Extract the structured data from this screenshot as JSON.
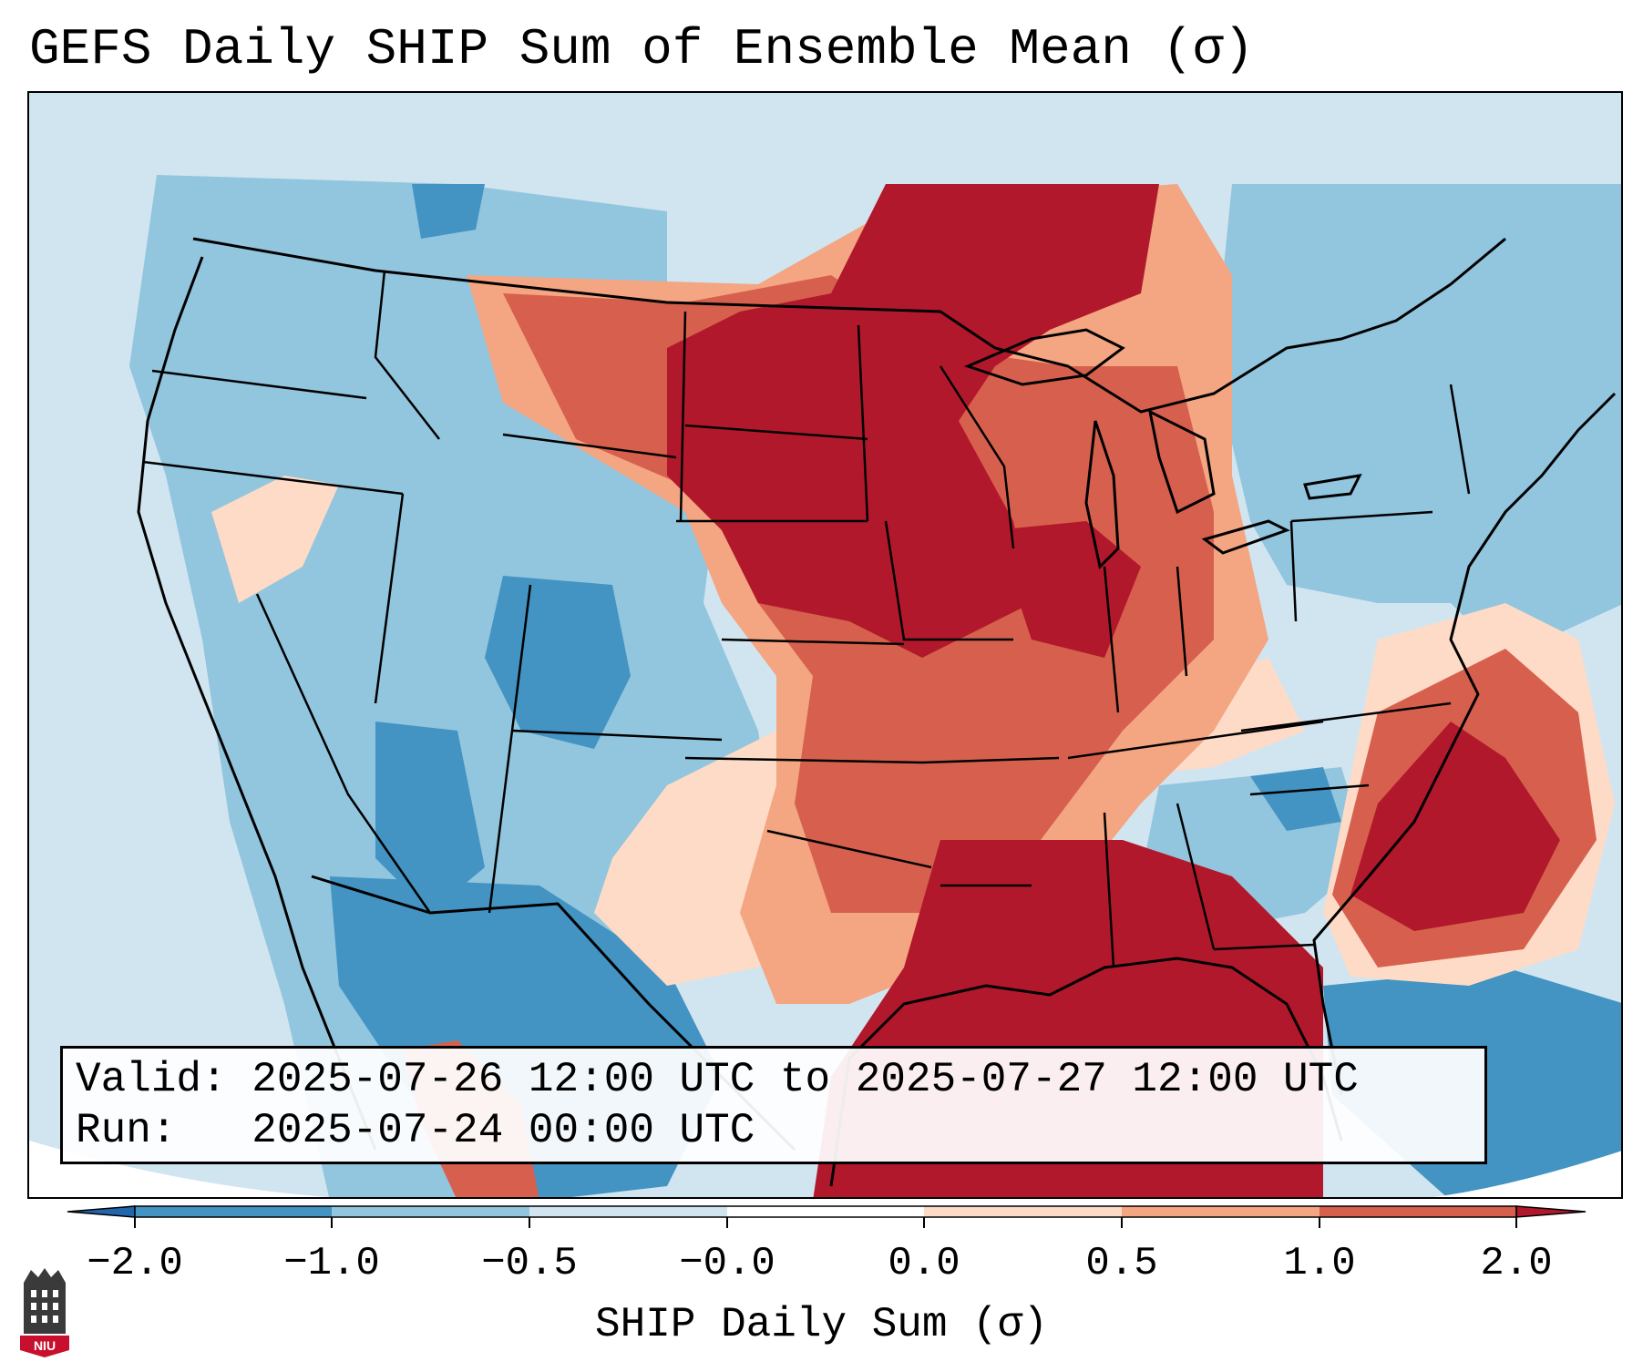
{
  "title": "GEFS Daily SHIP Sum of Ensemble Mean (σ)",
  "info": {
    "valid_label": "Valid:",
    "valid_value": "2025-07-26 12:00 UTC to 2025-07-27 12:00 UTC",
    "run_label": "Run:",
    "run_value": "2025-07-24 00:00 UTC"
  },
  "colorbar": {
    "label": "SHIP Daily Sum (σ)",
    "ticks": [
      "−2.0",
      "−1.0",
      "−0.5",
      "−0.0",
      "0.0",
      "0.5",
      "1.0",
      "2.0"
    ],
    "colors": [
      "#2166ac",
      "#4393c3",
      "#92c5de",
      "#d1e5f0",
      "#ffffff",
      "#fddbc7",
      "#f4a582",
      "#d6604d",
      "#b2182b"
    ],
    "extend": "both"
  },
  "map": {
    "region": "Contiguous United States",
    "background_color": "#d1e5f0",
    "features": [
      "state-borders",
      "coastlines",
      "great-lakes",
      "country-borders"
    ]
  },
  "logo": {
    "text": "NIU"
  }
}
